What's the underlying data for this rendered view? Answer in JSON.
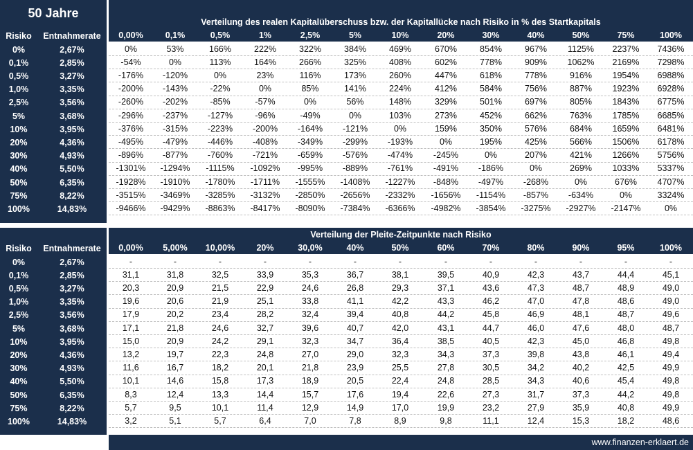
{
  "title": "50 Jahre",
  "row_headers": {
    "risk": "Risiko",
    "rate": "Entnahmerate"
  },
  "risk_rates": [
    [
      "0%",
      "2,67%"
    ],
    [
      "0,1%",
      "2,85%"
    ],
    [
      "0,5%",
      "3,27%"
    ],
    [
      "1,0%",
      "3,35%"
    ],
    [
      "2,5%",
      "3,56%"
    ],
    [
      "5%",
      "3,68%"
    ],
    [
      "10%",
      "3,95%"
    ],
    [
      "20%",
      "4,36%"
    ],
    [
      "30%",
      "4,93%"
    ],
    [
      "40%",
      "5,50%"
    ],
    [
      "50%",
      "6,35%"
    ],
    [
      "75%",
      "8,22%"
    ],
    [
      "100%",
      "14,83%"
    ]
  ],
  "table1": {
    "title": "Verteilung des realen Kapitalüberschuss bzw. der Kapitallücke nach Risiko in % des Startkapitals",
    "columns": [
      "0,00%",
      "0,1%",
      "0,5%",
      "1%",
      "2,5%",
      "5%",
      "10%",
      "20%",
      "30%",
      "40%",
      "50%",
      "75%",
      "100%"
    ],
    "rows": [
      [
        "0%",
        "53%",
        "166%",
        "222%",
        "322%",
        "384%",
        "469%",
        "670%",
        "854%",
        "967%",
        "1125%",
        "2237%",
        "7436%"
      ],
      [
        "-54%",
        "0%",
        "113%",
        "164%",
        "266%",
        "325%",
        "408%",
        "602%",
        "778%",
        "909%",
        "1062%",
        "2169%",
        "7298%"
      ],
      [
        "-176%",
        "-120%",
        "0%",
        "23%",
        "116%",
        "173%",
        "260%",
        "447%",
        "618%",
        "778%",
        "916%",
        "1954%",
        "6988%"
      ],
      [
        "-200%",
        "-143%",
        "-22%",
        "0%",
        "85%",
        "141%",
        "224%",
        "412%",
        "584%",
        "756%",
        "887%",
        "1923%",
        "6928%"
      ],
      [
        "-260%",
        "-202%",
        "-85%",
        "-57%",
        "0%",
        "56%",
        "148%",
        "329%",
        "501%",
        "697%",
        "805%",
        "1843%",
        "6775%"
      ],
      [
        "-296%",
        "-237%",
        "-127%",
        "-96%",
        "-49%",
        "0%",
        "103%",
        "273%",
        "452%",
        "662%",
        "763%",
        "1785%",
        "6685%"
      ],
      [
        "-376%",
        "-315%",
        "-223%",
        "-200%",
        "-164%",
        "-121%",
        "0%",
        "159%",
        "350%",
        "576%",
        "684%",
        "1659%",
        "6481%"
      ],
      [
        "-495%",
        "-479%",
        "-446%",
        "-408%",
        "-349%",
        "-299%",
        "-193%",
        "0%",
        "195%",
        "425%",
        "566%",
        "1506%",
        "6178%"
      ],
      [
        "-896%",
        "-877%",
        "-760%",
        "-721%",
        "-659%",
        "-576%",
        "-474%",
        "-245%",
        "0%",
        "207%",
        "421%",
        "1266%",
        "5756%"
      ],
      [
        "-1301%",
        "-1294%",
        "-1115%",
        "-1092%",
        "-995%",
        "-889%",
        "-761%",
        "-491%",
        "-186%",
        "0%",
        "269%",
        "1033%",
        "5337%"
      ],
      [
        "-1928%",
        "-1910%",
        "-1780%",
        "-1711%",
        "-1555%",
        "-1408%",
        "-1227%",
        "-848%",
        "-497%",
        "-268%",
        "0%",
        "676%",
        "4707%"
      ],
      [
        "-3515%",
        "-3469%",
        "-3285%",
        "-3132%",
        "-2850%",
        "-2656%",
        "-2332%",
        "-1656%",
        "-1154%",
        "-857%",
        "-634%",
        "0%",
        "3324%"
      ],
      [
        "-9466%",
        "-9429%",
        "-8863%",
        "-8417%",
        "-8090%",
        "-7384%",
        "-6366%",
        "-4982%",
        "-3854%",
        "-3275%",
        "-2927%",
        "-2147%",
        "0%"
      ]
    ]
  },
  "table2": {
    "title": "Verteilung der Pleite-Zeitpunkte nach Risiko",
    "columns": [
      "0,00%",
      "5,00%",
      "10,00%",
      "20%",
      "30,0%",
      "40%",
      "50%",
      "60%",
      "70%",
      "80%",
      "90%",
      "95%",
      "100%"
    ],
    "rows": [
      [
        "-",
        "-",
        "-",
        "-",
        "-",
        "-",
        "-",
        "-",
        "-",
        "-",
        "-",
        "-",
        "-"
      ],
      [
        "31,1",
        "31,8",
        "32,5",
        "33,9",
        "35,3",
        "36,7",
        "38,1",
        "39,5",
        "40,9",
        "42,3",
        "43,7",
        "44,4",
        "45,1"
      ],
      [
        "20,3",
        "20,9",
        "21,5",
        "22,9",
        "24,6",
        "26,8",
        "29,3",
        "37,1",
        "43,6",
        "47,3",
        "48,7",
        "48,9",
        "49,0"
      ],
      [
        "19,6",
        "20,6",
        "21,9",
        "25,1",
        "33,8",
        "41,1",
        "42,2",
        "43,3",
        "46,2",
        "47,0",
        "47,8",
        "48,6",
        "49,0"
      ],
      [
        "17,9",
        "20,2",
        "23,4",
        "28,2",
        "32,4",
        "39,4",
        "40,8",
        "44,2",
        "45,8",
        "46,9",
        "48,1",
        "48,7",
        "49,6"
      ],
      [
        "17,1",
        "21,8",
        "24,6",
        "32,7",
        "39,6",
        "40,7",
        "42,0",
        "43,1",
        "44,7",
        "46,0",
        "47,6",
        "48,0",
        "48,7"
      ],
      [
        "15,0",
        "20,9",
        "24,2",
        "29,1",
        "32,3",
        "34,7",
        "36,4",
        "38,5",
        "40,5",
        "42,3",
        "45,0",
        "46,8",
        "49,8"
      ],
      [
        "13,2",
        "19,7",
        "22,3",
        "24,8",
        "27,0",
        "29,0",
        "32,3",
        "34,3",
        "37,3",
        "39,8",
        "43,8",
        "46,1",
        "49,4"
      ],
      [
        "11,6",
        "16,7",
        "18,2",
        "20,1",
        "21,8",
        "23,9",
        "25,5",
        "27,8",
        "30,5",
        "34,2",
        "40,2",
        "42,5",
        "49,9"
      ],
      [
        "10,1",
        "14,6",
        "15,8",
        "17,3",
        "18,9",
        "20,5",
        "22,4",
        "24,8",
        "28,5",
        "34,3",
        "40,6",
        "45,4",
        "49,8"
      ],
      [
        "8,3",
        "12,4",
        "13,3",
        "14,4",
        "15,7",
        "17,6",
        "19,4",
        "22,6",
        "27,3",
        "31,7",
        "37,3",
        "44,2",
        "49,8"
      ],
      [
        "5,7",
        "9,5",
        "10,1",
        "11,4",
        "12,9",
        "14,9",
        "17,0",
        "19,9",
        "23,2",
        "27,9",
        "35,9",
        "40,8",
        "49,9"
      ],
      [
        "3,2",
        "5,1",
        "5,7",
        "6,4",
        "7,0",
        "7,8",
        "8,9",
        "9,8",
        "11,1",
        "12,4",
        "15,3",
        "18,2",
        "48,6"
      ]
    ]
  },
  "footer": "www.finanzen-erklaert.de",
  "colors": {
    "navy": "#1b2f4b",
    "white": "#ffffff"
  }
}
